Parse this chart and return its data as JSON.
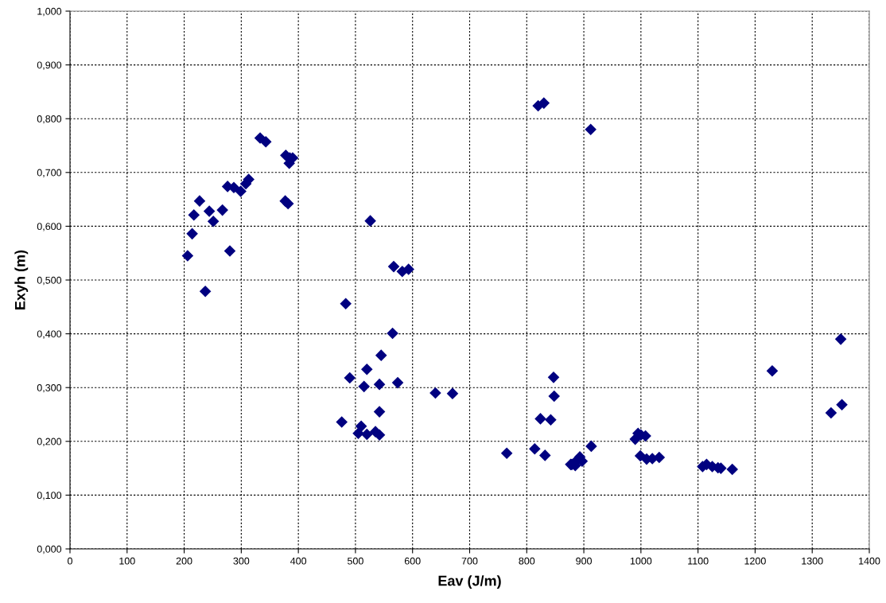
{
  "chart_data": {
    "type": "scatter",
    "xlabel": "Eav (J/m)",
    "ylabel": "Exyh (m)",
    "marker": "diamond",
    "grid": true,
    "legend": false,
    "xlim": [
      0,
      1400
    ],
    "xticks": [
      0,
      100,
      200,
      300,
      400,
      500,
      600,
      700,
      800,
      900,
      1000,
      1100,
      1200,
      1300,
      1400
    ],
    "ylim": [
      0,
      1
    ],
    "yticks": [
      {
        "value": 0,
        "label": "0,000"
      },
      {
        "value": 0.1,
        "label": "0,100"
      },
      {
        "value": 0.2,
        "label": "0,200"
      },
      {
        "value": 0.3,
        "label": "0,300"
      },
      {
        "value": 0.4,
        "label": "0,400"
      },
      {
        "value": 0.5,
        "label": "0,500"
      },
      {
        "value": 0.6,
        "label": "0,600"
      },
      {
        "value": 0.7,
        "label": "0,700"
      },
      {
        "value": 0.8,
        "label": "0,800"
      },
      {
        "value": 0.9,
        "label": "0,900"
      },
      {
        "value": 1,
        "label": "1,000"
      }
    ],
    "series": [
      {
        "color": "#000080",
        "x": [
          333,
          343,
          378,
          385,
          390,
          384,
          313,
          308,
          276,
          287,
          299,
          377,
          382,
          227,
          217,
          244,
          267,
          251,
          214,
          206,
          280,
          237,
          526,
          567,
          582,
          593,
          483,
          565,
          545,
          520,
          490,
          515,
          542,
          574,
          640,
          670,
          542,
          476,
          505,
          510,
          520,
          535,
          542,
          765,
          814,
          832,
          847,
          848,
          824,
          842,
          879,
          820,
          830,
          912,
          913,
          877,
          888,
          893,
          897,
          885,
          1350,
          1230,
          1352,
          1333,
          995,
          1000,
          1008,
          990,
          999,
          1010,
          1020,
          1032,
          1108,
          1115,
          1125,
          1135,
          1140,
          1160
        ],
        "values": [
          0.764,
          0.757,
          0.732,
          0.727,
          0.727,
          0.717,
          0.687,
          0.679,
          0.674,
          0.672,
          0.665,
          0.647,
          0.642,
          0.647,
          0.621,
          0.628,
          0.63,
          0.609,
          0.586,
          0.545,
          0.554,
          0.479,
          0.61,
          0.525,
          0.516,
          0.52,
          0.456,
          0.401,
          0.36,
          0.334,
          0.318,
          0.302,
          0.306,
          0.309,
          0.29,
          0.289,
          0.255,
          0.236,
          0.215,
          0.228,
          0.213,
          0.218,
          0.212,
          0.178,
          0.186,
          0.174,
          0.319,
          0.284,
          0.242,
          0.24,
          0.157,
          0.824,
          0.829,
          0.78,
          0.191,
          0.157,
          0.165,
          0.171,
          0.163,
          0.155,
          0.39,
          0.331,
          0.268,
          0.253,
          0.215,
          0.212,
          0.21,
          0.204,
          0.173,
          0.167,
          0.168,
          0.17,
          0.153,
          0.157,
          0.153,
          0.151,
          0.15,
          0.148
        ]
      }
    ]
  }
}
